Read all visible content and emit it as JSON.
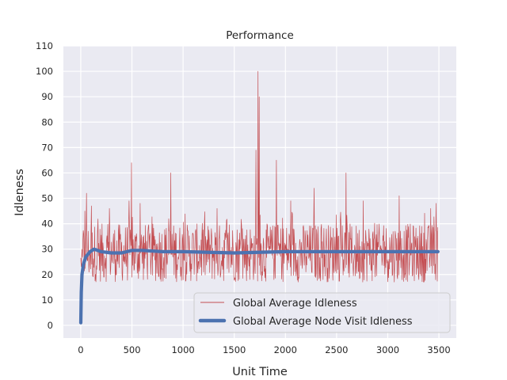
{
  "chart_data": {
    "type": "line",
    "title": "Performance",
    "xlabel": "Unit Time",
    "ylabel": "Idleness",
    "xlim": [
      -170,
      3670
    ],
    "ylim": [
      -5,
      110
    ],
    "xticks": [
      0,
      500,
      1000,
      1500,
      2000,
      2500,
      3000,
      3500
    ],
    "yticks": [
      0,
      10,
      20,
      30,
      40,
      50,
      60,
      70,
      80,
      90,
      100,
      110
    ],
    "grid": true,
    "legend_position": "lower-right",
    "series": [
      {
        "name": "Global Average Idleness",
        "color": "#c44e52",
        "style": "thin-line",
        "x_range": [
          0,
          3490
        ],
        "baseline": 28,
        "noise_range": [
          17,
          40
        ],
        "spikes": [
          {
            "x": 40,
            "y": 45
          },
          {
            "x": 55,
            "y": 52
          },
          {
            "x": 105,
            "y": 47
          },
          {
            "x": 280,
            "y": 46
          },
          {
            "x": 470,
            "y": 49
          },
          {
            "x": 495,
            "y": 64
          },
          {
            "x": 580,
            "y": 48
          },
          {
            "x": 880,
            "y": 60
          },
          {
            "x": 1330,
            "y": 46
          },
          {
            "x": 1710,
            "y": 69
          },
          {
            "x": 1730,
            "y": 100
          },
          {
            "x": 1745,
            "y": 90
          },
          {
            "x": 1910,
            "y": 65
          },
          {
            "x": 2050,
            "y": 49
          },
          {
            "x": 2280,
            "y": 54
          },
          {
            "x": 2590,
            "y": 60
          },
          {
            "x": 2760,
            "y": 49
          },
          {
            "x": 3110,
            "y": 51
          },
          {
            "x": 3420,
            "y": 46
          },
          {
            "x": 3470,
            "y": 48
          }
        ]
      },
      {
        "name": "Global Average Node Visit Idleness",
        "color": "#4c72b0",
        "style": "thick-line",
        "points": [
          [
            0,
            1
          ],
          [
            5,
            13
          ],
          [
            12,
            20
          ],
          [
            25,
            24
          ],
          [
            50,
            27
          ],
          [
            90,
            29
          ],
          [
            130,
            30
          ],
          [
            200,
            29
          ],
          [
            300,
            28.5
          ],
          [
            400,
            28.5
          ],
          [
            500,
            29.5
          ],
          [
            600,
            29.5
          ],
          [
            800,
            29
          ],
          [
            1000,
            29
          ],
          [
            1500,
            28.5
          ],
          [
            2000,
            29
          ],
          [
            2500,
            29
          ],
          [
            3000,
            29
          ],
          [
            3490,
            29
          ]
        ]
      }
    ]
  }
}
